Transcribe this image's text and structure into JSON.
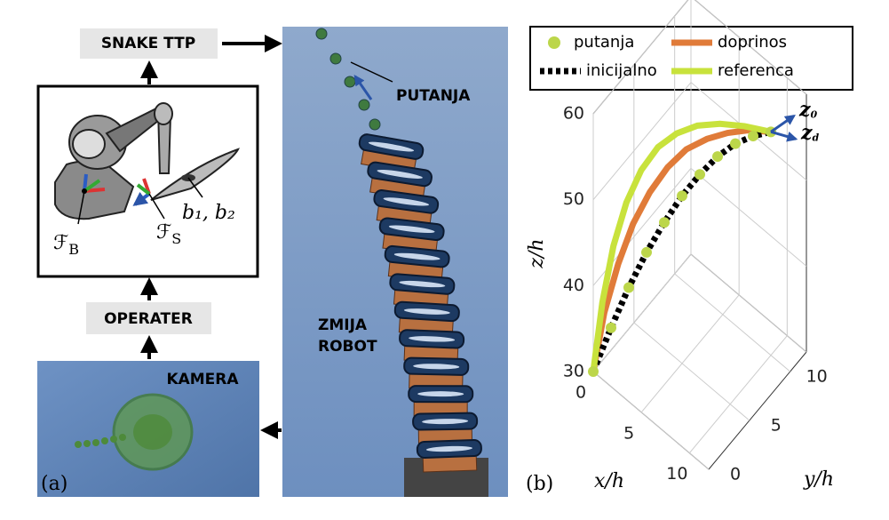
{
  "panel_a": {
    "label": "(a)",
    "snake_ttp": "SNAKE TTP",
    "operater": "OPERATER",
    "kamera": "KAMERA",
    "putanja": "PUTANJA",
    "zmija_robot": [
      "ZMIJA",
      "ROBOT"
    ],
    "frame_b": {
      "symbol": "ℱ",
      "sub": "B"
    },
    "frame_s": {
      "symbol": "ℱ",
      "sub": "S"
    },
    "b_label": "b₁, b₂"
  },
  "panel_b_label": "(b)",
  "chart_data": {
    "type": "line3d",
    "xlabel": "x/h",
    "ylabel": "y/h",
    "zlabel": "z/h",
    "xlim": [
      0,
      12
    ],
    "ylim": [
      0,
      12
    ],
    "zlim": [
      30,
      60
    ],
    "xticks": [
      0,
      5,
      10
    ],
    "yticks": [
      0,
      5,
      10
    ],
    "zticks": [
      30,
      40,
      50,
      60
    ],
    "grid": true,
    "frame_arrows": [
      {
        "base": "z",
        "sub": "0"
      },
      {
        "base": "z",
        "sub": "d"
      }
    ],
    "series": [
      {
        "name": "putanja",
        "color": "#bcd64a",
        "marker": "o",
        "x": [
          0,
          1,
          2,
          3,
          4,
          5,
          6,
          7,
          8,
          9,
          10
        ],
        "y": [
          0,
          1,
          2,
          3,
          4,
          5,
          6,
          7,
          8,
          9,
          10
        ],
        "z": [
          30,
          34.9,
          39.4,
          43.3,
          46.6,
          49.5,
          51.8,
          53.7,
          55,
          55.7,
          56
        ]
      },
      {
        "name": "doprinos",
        "color": "#e07b39",
        "linestyle": "solid",
        "x": [
          0,
          0.3,
          0.9,
          1.6,
          2.5,
          3.5,
          4.6,
          5.9,
          7.2,
          8.5,
          10
        ],
        "y": [
          0,
          1,
          2,
          3,
          4,
          5,
          6,
          7,
          8,
          9,
          10
        ],
        "z": [
          30,
          36,
          41.1,
          45.3,
          48.7,
          51.4,
          53.4,
          54.7,
          55.5,
          55.9,
          56
        ]
      },
      {
        "name": "inicijalno",
        "color": "#000000",
        "linestyle": "dashed",
        "x": [
          0,
          1,
          2,
          3,
          4,
          5,
          6,
          7,
          8,
          9,
          10
        ],
        "y": [
          0,
          1,
          2,
          3,
          4,
          5,
          6,
          7,
          8,
          9,
          10
        ],
        "z": [
          30,
          34.9,
          39.4,
          43.3,
          46.6,
          49.5,
          51.8,
          53.7,
          55,
          55.7,
          56
        ]
      },
      {
        "name": "referenca",
        "color": "#c8e23c",
        "linestyle": "solid",
        "x": [
          0,
          0.1,
          0.4,
          0.9,
          1.6,
          2.5,
          3.6,
          4.9,
          6.4,
          8.1,
          10
        ],
        "y": [
          0,
          1,
          2,
          3,
          4,
          5,
          6,
          7,
          8,
          9,
          10
        ],
        "z": [
          30,
          37,
          42.7,
          47.1,
          50.4,
          52.8,
          54.3,
          55.3,
          55.8,
          56,
          56
        ]
      }
    ]
  }
}
